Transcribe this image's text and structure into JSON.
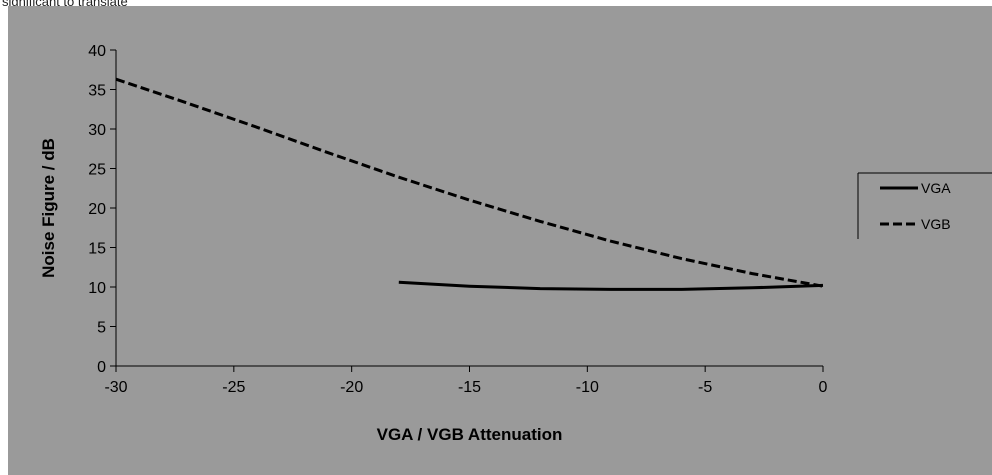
{
  "page": {
    "top_text": "significant to translate"
  },
  "chart_data": {
    "type": "line",
    "title": "",
    "xlabel": "VGA / VGB Attenuation",
    "ylabel": "Noise Figure / dB",
    "xlim": [
      -30,
      0
    ],
    "ylim": [
      0,
      40
    ],
    "xticks": [
      -30,
      -25,
      -20,
      -15,
      -10,
      -5,
      0
    ],
    "yticks": [
      0,
      5,
      10,
      15,
      20,
      25,
      30,
      35,
      40
    ],
    "grid": false,
    "legend_position": "right",
    "series": [
      {
        "name": "VGA",
        "style": "solid",
        "color": "#000000",
        "x": [
          -18,
          -15,
          -12,
          -9,
          -6,
          -3,
          0
        ],
        "y": [
          10.6,
          10.1,
          9.8,
          9.7,
          9.7,
          9.9,
          10.2
        ]
      },
      {
        "name": "VGB",
        "style": "dashed",
        "color": "#000000",
        "x": [
          -30,
          -27,
          -24,
          -21,
          -18,
          -15,
          -12,
          -9,
          -6,
          -3,
          0
        ],
        "y": [
          36.3,
          33.3,
          30.2,
          27.0,
          23.9,
          21.0,
          18.3,
          15.8,
          13.6,
          11.7,
          10.1
        ]
      }
    ]
  }
}
